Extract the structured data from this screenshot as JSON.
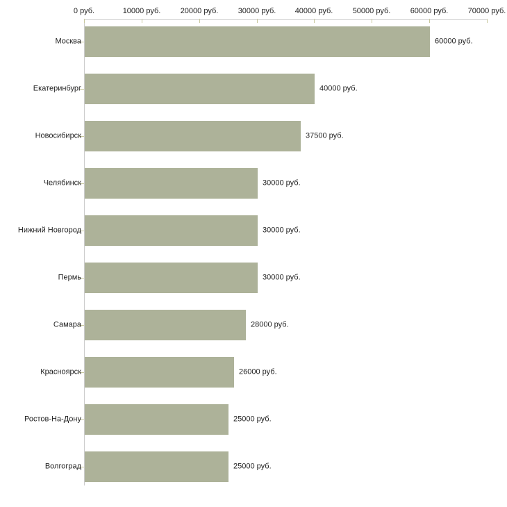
{
  "chart_data": {
    "type": "bar",
    "orientation": "horizontal",
    "unit": "руб.",
    "categories": [
      "Москва",
      "Екатеринбург",
      "Новосибирск",
      "Челябинск",
      "Нижний Новгород",
      "Пермь",
      "Самара",
      "Красноярск",
      "Ростов-На-Дону",
      "Волгоград"
    ],
    "values": [
      60000,
      40000,
      37500,
      30000,
      30000,
      30000,
      28000,
      26000,
      25000,
      25000
    ],
    "value_labels": [
      "60000 руб.",
      "40000 руб.",
      "37500 руб.",
      "30000 руб.",
      "30000 руб.",
      "30000 руб.",
      "28000 руб.",
      "26000 руб.",
      "25000 руб.",
      "25000 руб."
    ],
    "x_tick_values": [
      0,
      10000,
      20000,
      30000,
      40000,
      50000,
      60000,
      70000
    ],
    "x_tick_labels": [
      "0 руб.",
      "10000 руб.",
      "20000 руб.",
      "30000 руб.",
      "40000 руб.",
      "50000 руб.",
      "60000 руб.",
      "70000 руб."
    ],
    "xlim": [
      0,
      70000
    ],
    "grid": false,
    "legend": null,
    "colors": {
      "bar": "#adb299",
      "axis": "#cccccc",
      "tick": "#c8c89e",
      "text": "#222222",
      "background": "#ffffff"
    }
  }
}
